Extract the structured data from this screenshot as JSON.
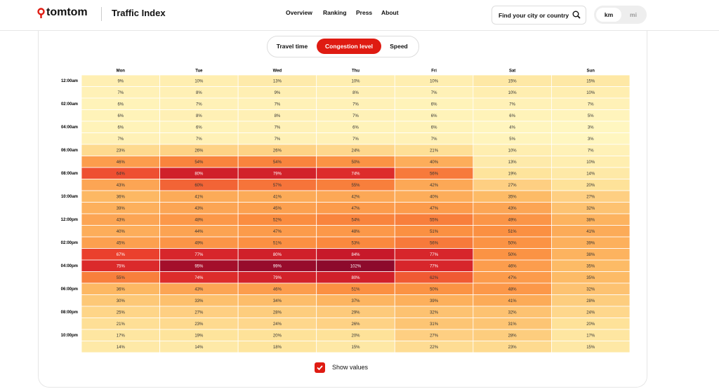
{
  "header": {
    "logo": "tomtom",
    "title": "Traffic Index",
    "nav": [
      "Overview",
      "Ranking",
      "Press",
      "About"
    ],
    "search": "Find your city or country",
    "units": [
      "km",
      "mi"
    ]
  },
  "tabs": [
    "Travel time",
    "Congestion level",
    "Speed"
  ],
  "chart_data": {
    "type": "heatmap",
    "categories": [
      "Mon",
      "Tue",
      "Wed",
      "Thu",
      "Fri",
      "Sat",
      "Sun"
    ],
    "y_categories": [
      "12:00am",
      null,
      "02:00am",
      null,
      "04:00am",
      null,
      "06:00am",
      null,
      "08:00am",
      null,
      "10:00am",
      null,
      "12:00pm",
      null,
      "02:00pm",
      null,
      "04:00pm",
      null,
      "06:00pm",
      null,
      "08:00pm",
      null,
      "10:00pm",
      null
    ],
    "values": [
      [
        9,
        10,
        13,
        10,
        10,
        15,
        15
      ],
      [
        7,
        8,
        9,
        8,
        7,
        10,
        10
      ],
      [
        6,
        7,
        7,
        7,
        6,
        7,
        7
      ],
      [
        6,
        8,
        8,
        7,
        6,
        6,
        5
      ],
      [
        6,
        6,
        7,
        6,
        6,
        4,
        3
      ],
      [
        7,
        7,
        7,
        7,
        7,
        5,
        3
      ],
      [
        23,
        26,
        26,
        24,
        21,
        10,
        7
      ],
      [
        46,
        54,
        54,
        50,
        40,
        13,
        10
      ],
      [
        64,
        80,
        79,
        74,
        56,
        19,
        14
      ],
      [
        43,
        60,
        57,
        55,
        42,
        27,
        20
      ],
      [
        36,
        41,
        41,
        42,
        40,
        35,
        27
      ],
      [
        39,
        43,
        45,
        47,
        47,
        43,
        32
      ],
      [
        43,
        48,
        52,
        54,
        55,
        49,
        38
      ],
      [
        40,
        44,
        47,
        48,
        51,
        51,
        41
      ],
      [
        45,
        49,
        51,
        53,
        56,
        50,
        39
      ],
      [
        67,
        77,
        80,
        84,
        77,
        50,
        38
      ],
      [
        75,
        95,
        99,
        102,
        77,
        46,
        35
      ],
      [
        55,
        74,
        79,
        80,
        62,
        47,
        35
      ],
      [
        36,
        43,
        46,
        51,
        50,
        48,
        32
      ],
      [
        30,
        33,
        34,
        37,
        39,
        41,
        28
      ],
      [
        25,
        27,
        28,
        29,
        32,
        32,
        24
      ],
      [
        21,
        23,
        24,
        26,
        31,
        31,
        20
      ],
      [
        17,
        19,
        20,
        20,
        27,
        28,
        17
      ],
      [
        14,
        14,
        18,
        15,
        22,
        23,
        15
      ]
    ],
    "value_labels": [
      [
        "9%",
        "10%",
        "13%",
        "10%",
        "10%",
        "15%",
        "15%"
      ],
      [
        "7%",
        "8%",
        "9%",
        "8%",
        "7%",
        "10%",
        "10%"
      ],
      [
        "6%",
        "7%",
        "7%",
        "7%",
        "6%",
        "7%",
        "7%"
      ],
      [
        "6%",
        "8%",
        "8%",
        "7%",
        "6%",
        "6%",
        "5%"
      ],
      [
        "6%",
        "6%",
        "7%",
        "6%",
        "6%",
        "4%",
        "3%"
      ],
      [
        "7%",
        "7%",
        "7%",
        "7%",
        "7%",
        "5%",
        "3%"
      ],
      [
        "23%",
        "26%",
        "26%",
        "24%",
        "21%",
        "10%",
        "7%"
      ],
      [
        "46%",
        "54%",
        "54%",
        "50%",
        "40%",
        "13%",
        "10%"
      ],
      [
        "64%",
        "80%",
        "79%",
        "74%",
        "56%",
        "19%",
        "14%"
      ],
      [
        "43%",
        "60%",
        "57%",
        "55%",
        "42%",
        "27%",
        "20%"
      ],
      [
        "36%",
        "41%",
        "41%",
        "42%",
        "40%",
        "35%",
        "27%"
      ],
      [
        "39%",
        "43%",
        "45%",
        "47%",
        "47%",
        "43%",
        "32%"
      ],
      [
        "43%",
        "48%",
        "52%",
        "54%",
        "55%",
        "49%",
        "38%"
      ],
      [
        "40%",
        "44%",
        "47%",
        "48%",
        "51%",
        "51%",
        "41%"
      ],
      [
        "45%",
        "49%",
        "51%",
        "53%",
        "56%",
        "50%",
        "39%"
      ],
      [
        "67%",
        "77%",
        "80%",
        "84%",
        "77%",
        "50%",
        "38%"
      ],
      [
        "75%",
        "95%",
        "99%",
        "102%",
        "77%",
        "46%",
        "35%"
      ],
      [
        "55%",
        "74%",
        "79%",
        "80%",
        "62%",
        "47%",
        "35%"
      ],
      [
        "36%",
        "43%",
        "46%",
        "51%",
        "50%",
        "48%",
        "32%"
      ],
      [
        "30%",
        "33%",
        "34%",
        "37%",
        "39%",
        "41%",
        "28%"
      ],
      [
        "25%",
        "27%",
        "28%",
        "29%",
        "32%",
        "32%",
        "24%"
      ],
      [
        "21%",
        "23%",
        "24%",
        "26%",
        "31%",
        "31%",
        "20%"
      ],
      [
        "17%",
        "19%",
        "20%",
        "20%",
        "27%",
        "28%",
        "17%"
      ],
      [
        "14%",
        "14%",
        "18%",
        "15%",
        "22%",
        "23%",
        "15%"
      ]
    ],
    "colors": [
      "#fff6c0",
      "#fee39b",
      "#fdb863",
      "#fb8c3f",
      "#e8352b",
      "#c4162a",
      "#8d0a2c"
    ]
  },
  "show_values": "Show values"
}
